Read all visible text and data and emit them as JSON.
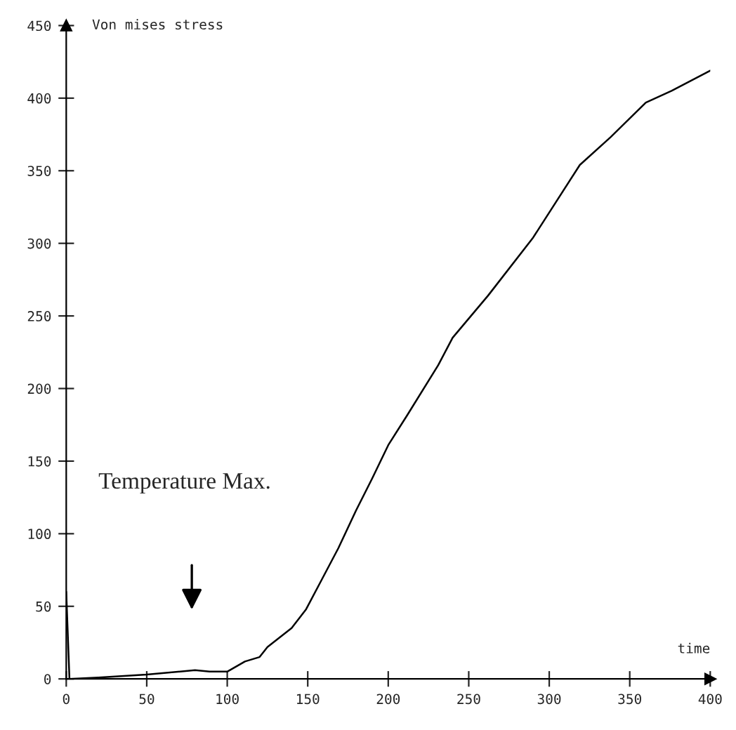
{
  "chart_data": {
    "type": "line",
    "xlabel": "time",
    "ylabel": "Von mises stress",
    "x": [
      0,
      2,
      20,
      50,
      80,
      89,
      100,
      111,
      120,
      125,
      140,
      149,
      159,
      169,
      180,
      190,
      200,
      212,
      231,
      240,
      262,
      290,
      319,
      338,
      360,
      376,
      400
    ],
    "series": [
      {
        "color": "#000000",
        "values": [
          60,
          0,
          1,
          3,
          6,
          5,
          5,
          12,
          15,
          22,
          35,
          48,
          69,
          90,
          116,
          138,
          161,
          182,
          216,
          235,
          264,
          304,
          354,
          373,
          397,
          405,
          419
        ]
      }
    ],
    "xlim": [
      0,
      400
    ],
    "xticks": [
      0,
      50,
      100,
      150,
      200,
      250,
      300,
      350,
      400
    ],
    "ylim": [
      0,
      450
    ],
    "yticks": [
      0,
      50,
      100,
      150,
      200,
      250,
      300,
      350,
      400,
      450
    ],
    "grid": false,
    "legend": false,
    "annotations": [
      "Temperature Max."
    ]
  }
}
